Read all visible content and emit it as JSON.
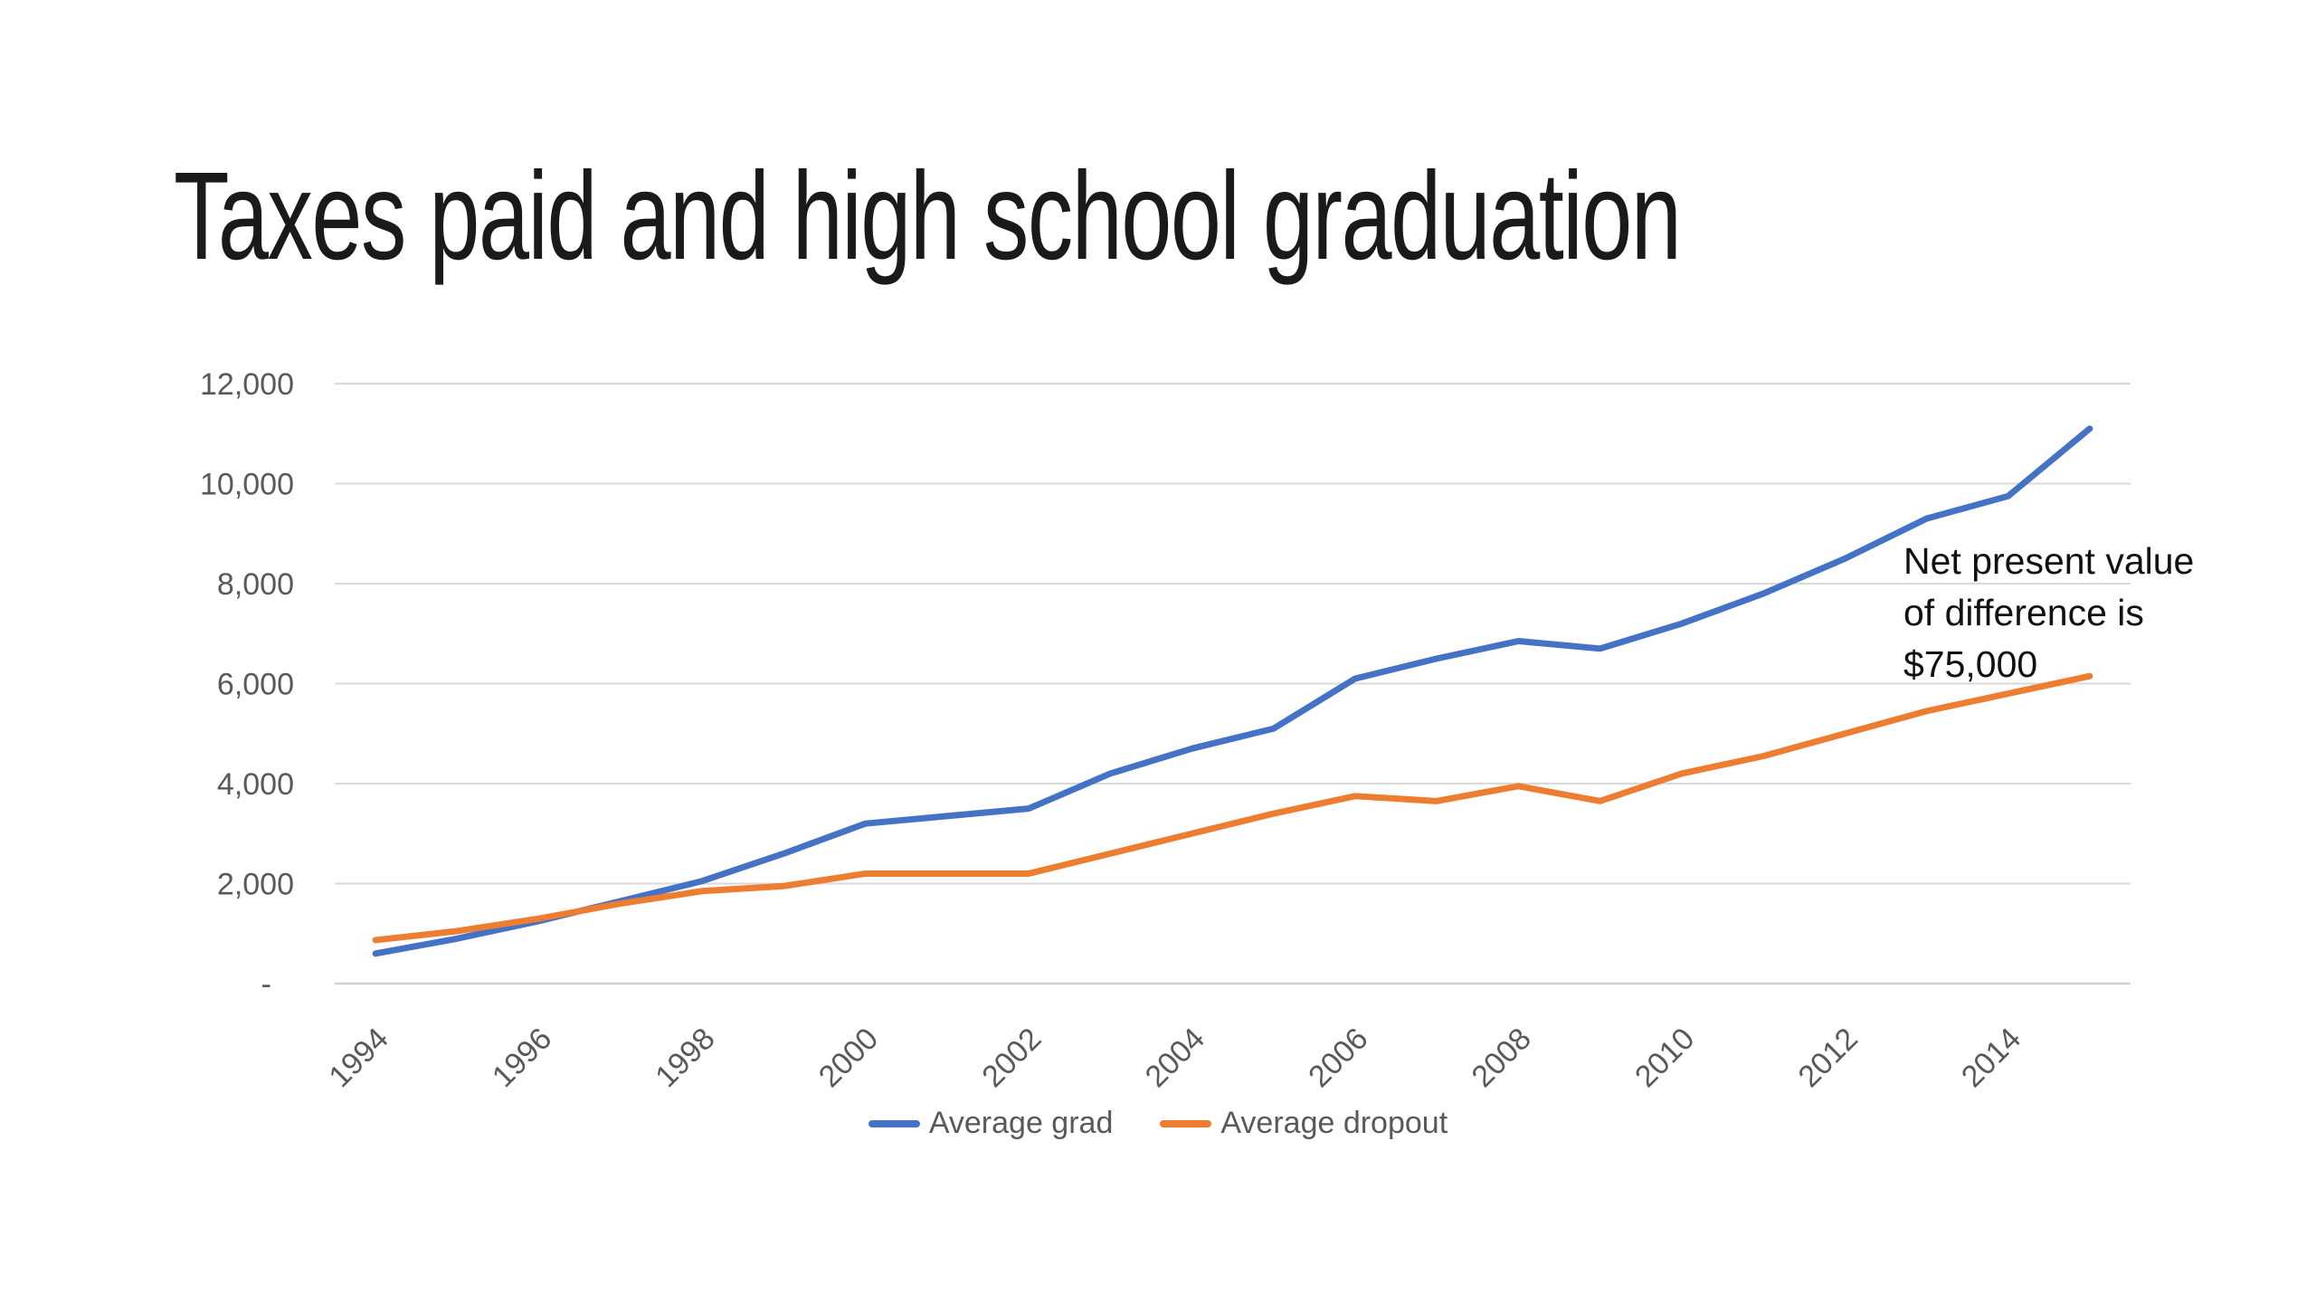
{
  "title": "Taxes paid and high school graduation",
  "annotation": {
    "lines": [
      "Net present value",
      "of difference is",
      "$75,000"
    ]
  },
  "chart_data": {
    "type": "line",
    "title": "Taxes paid and high school graduation",
    "xlabel": "",
    "ylabel": "",
    "x": [
      1994,
      1995,
      1996,
      1997,
      1998,
      1999,
      2000,
      2001,
      2002,
      2003,
      2004,
      2005,
      2006,
      2007,
      2008,
      2009,
      2010,
      2011,
      2012,
      2013,
      2014,
      2015
    ],
    "series": [
      {
        "name": "Average grad",
        "color": "#4472C4",
        "values": [
          600,
          900,
          1250,
          1650,
          2050,
          2600,
          3200,
          3350,
          3500,
          4200,
          4700,
          5100,
          6100,
          6500,
          6850,
          6700,
          7200,
          7800,
          8500,
          9300,
          9750,
          11100
        ]
      },
      {
        "name": "Average dropout",
        "color": "#ED7D31",
        "values": [
          870,
          1050,
          1300,
          1600,
          1850,
          1950,
          2200,
          2200,
          2200,
          2600,
          3000,
          3400,
          3750,
          3650,
          3950,
          3650,
          4200,
          4550,
          5000,
          5450,
          5800,
          6150
        ]
      }
    ],
    "ylim": [
      0,
      12000
    ],
    "y_ticks": [
      {
        "value": 0,
        "label": "-"
      },
      {
        "value": 2000,
        "label": "2,000"
      },
      {
        "value": 4000,
        "label": "4,000"
      },
      {
        "value": 6000,
        "label": "6,000"
      },
      {
        "value": 8000,
        "label": "8,000"
      },
      {
        "value": 10000,
        "label": "10,000"
      },
      {
        "value": 12000,
        "label": "12,000"
      }
    ],
    "x_tick_years": [
      1994,
      1996,
      1998,
      2000,
      2002,
      2004,
      2006,
      2008,
      2010,
      2012,
      2014
    ],
    "grid": true,
    "legend_position": "bottom",
    "annotation": "Net present value of difference is $75,000"
  },
  "colors": {
    "grad_line": "#4472C4",
    "dropout_line": "#ED7D31",
    "gridline": "#D9D9D9",
    "axis_line": "#D0D0D0",
    "axis_label_text": "#595959",
    "legend_text": "#595959",
    "title_text": "#1A1A1A",
    "annotation_text": "#111111",
    "background": "#FFFFFF"
  }
}
